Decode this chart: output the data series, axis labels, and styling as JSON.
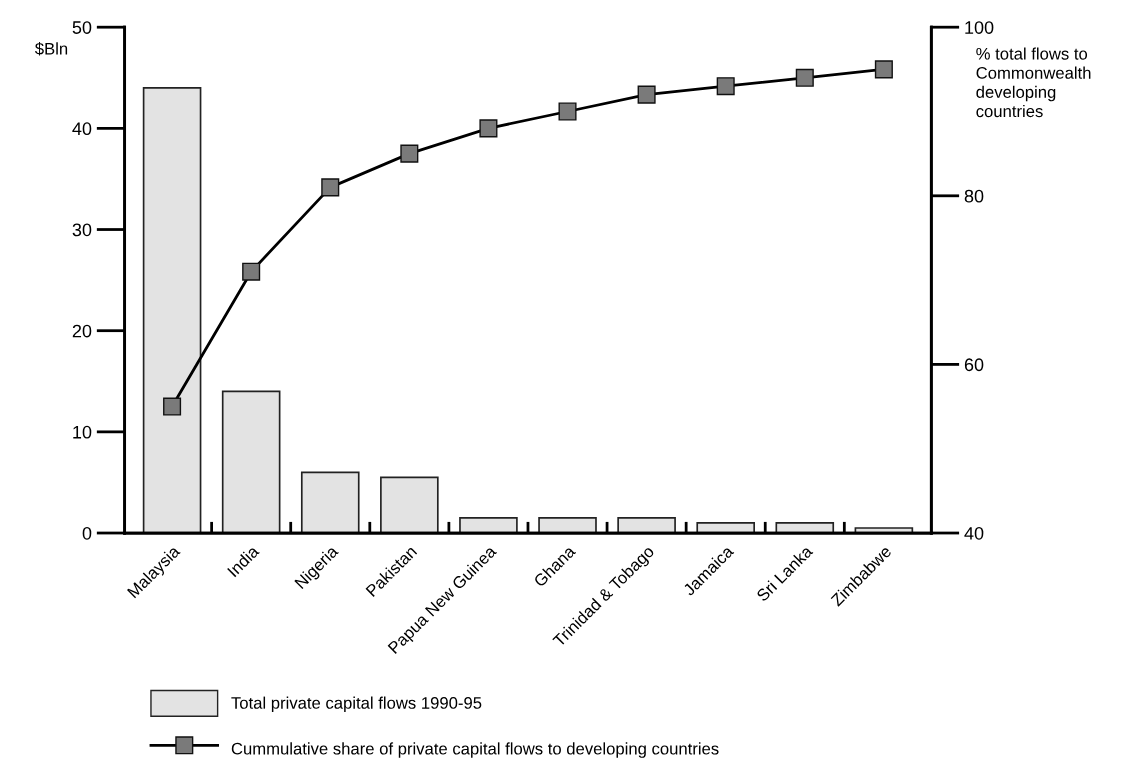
{
  "chart_data": {
    "type": "bar",
    "categories": [
      "Malaysia",
      "India",
      "Nigeria",
      "Pakistan",
      "Papua New Guinea",
      "Ghana",
      "Trinidad & Tobago",
      "Jamaica",
      "Sri Lanka",
      "Zimbabwe"
    ],
    "series": [
      {
        "name": "Total private capital flows 1990-95",
        "color": "#e3e3e3",
        "values": [
          44,
          14,
          6,
          5.5,
          1.5,
          1.5,
          1.5,
          1,
          1,
          0.5
        ]
      },
      {
        "name": "Cummulative share of private capital flows to developing countries",
        "type": "line",
        "axis": "y2",
        "color": "#000000",
        "values": [
          55,
          71,
          81,
          85,
          88,
          90,
          92,
          93,
          94,
          95
        ]
      }
    ],
    "ylabel": "$Bln",
    "y2label": "% total flows to\nCommonwealth\ndeveloping\ncountries",
    "ylim": [
      0,
      50
    ],
    "yticks": [
      0,
      10,
      20,
      30,
      40,
      50
    ],
    "y2lim": [
      40,
      100
    ],
    "y2ticks": [
      40,
      60,
      80,
      100
    ],
    "marker": "square",
    "line_style": "solid",
    "grid": false,
    "legend": "bottom"
  }
}
